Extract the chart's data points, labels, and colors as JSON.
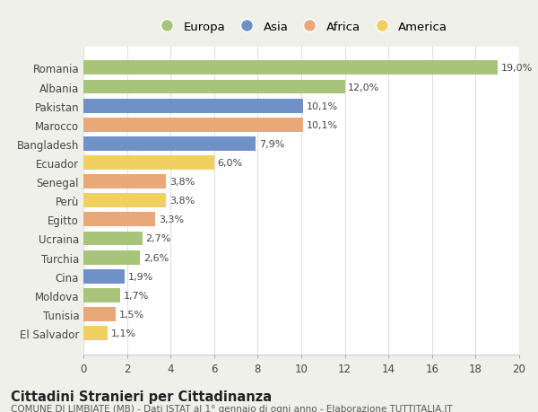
{
  "countries": [
    "Romania",
    "Albania",
    "Pakistan",
    "Marocco",
    "Bangladesh",
    "Ecuador",
    "Senegal",
    "Perù",
    "Egitto",
    "Ucraina",
    "Turchia",
    "Cina",
    "Moldova",
    "Tunisia",
    "El Salvador"
  ],
  "values": [
    19.0,
    12.0,
    10.1,
    10.1,
    7.9,
    6.0,
    3.8,
    3.8,
    3.3,
    2.7,
    2.6,
    1.9,
    1.7,
    1.5,
    1.1
  ],
  "labels": [
    "19,0%",
    "12,0%",
    "10,1%",
    "10,1%",
    "7,9%",
    "6,0%",
    "3,8%",
    "3,8%",
    "3,3%",
    "2,7%",
    "2,6%",
    "1,9%",
    "1,7%",
    "1,5%",
    "1,1%"
  ],
  "continents": [
    "Europa",
    "Europa",
    "Asia",
    "Africa",
    "Asia",
    "America",
    "Africa",
    "America",
    "Africa",
    "Europa",
    "Europa",
    "Asia",
    "Europa",
    "Africa",
    "America"
  ],
  "continent_colors": {
    "Europa": "#a8c47a",
    "Asia": "#7090c8",
    "Africa": "#e8a878",
    "America": "#f0d060"
  },
  "legend_order": [
    "Europa",
    "Asia",
    "Africa",
    "America"
  ],
  "title": "Cittadini Stranieri per Cittadinanza",
  "subtitle": "COMUNE DI LIMBIATE (MB) - Dati ISTAT al 1° gennaio di ogni anno - Elaborazione TUTTITALIA.IT",
  "xlim": [
    0,
    20
  ],
  "xticks": [
    0,
    2,
    4,
    6,
    8,
    10,
    12,
    14,
    16,
    18,
    20
  ],
  "background_color": "#f0f0eb",
  "plot_bg_color": "#ffffff",
  "grid_color": "#e0e0e0",
  "bar_height": 0.75,
  "label_fontsize": 8.0,
  "ytick_fontsize": 8.5,
  "xtick_fontsize": 8.5,
  "legend_fontsize": 9.5,
  "title_fontsize": 10.5,
  "subtitle_fontsize": 7.5
}
